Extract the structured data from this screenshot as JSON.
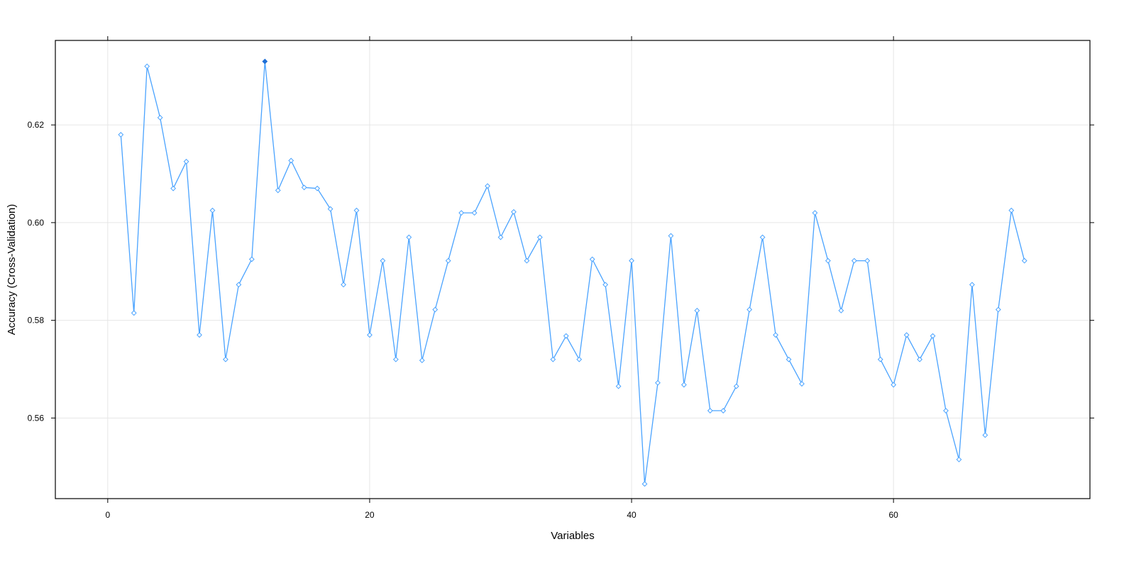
{
  "chart_data": {
    "type": "line",
    "title": "",
    "xlabel": "Variables",
    "ylabel": "Accuracy (Cross-Validation)",
    "xlim": [
      -4,
      75
    ],
    "ylim": [
      0.5435,
      0.6373
    ],
    "x_ticks": [
      0,
      20,
      40,
      60
    ],
    "x_tick_labels": [
      "0",
      "20",
      "40",
      "60"
    ],
    "y_ticks": [
      0.56,
      0.58,
      0.6,
      0.62
    ],
    "y_tick_labels": [
      "0.56",
      "0.58",
      "0.60",
      "0.62"
    ],
    "grid": true,
    "line_color": "#4aa3ff",
    "highlight_color": "#1f6fd6",
    "highlight_x": 12,
    "series": [
      {
        "x": [
          1,
          2,
          3,
          4,
          5,
          6,
          7,
          8,
          9,
          10,
          11,
          12,
          13,
          14,
          15,
          16,
          17,
          18,
          19,
          20,
          21,
          22,
          23,
          24,
          25,
          26,
          27,
          28,
          29,
          30,
          31,
          32,
          33,
          34,
          35,
          36,
          37,
          38,
          39,
          40,
          41,
          42,
          43,
          44,
          45,
          46,
          47,
          48,
          49,
          50,
          51,
          52,
          53,
          54,
          55,
          56,
          57,
          58,
          59,
          60,
          61,
          62,
          63,
          64,
          65,
          66,
          67,
          68,
          69,
          70
        ],
        "values": [
          0.618,
          0.5815,
          0.632,
          0.6215,
          0.607,
          0.6125,
          0.577,
          0.6025,
          0.572,
          0.5873,
          0.5925,
          0.633,
          0.6066,
          0.6127,
          0.6072,
          0.607,
          0.6028,
          0.5873,
          0.6025,
          0.577,
          0.5922,
          0.572,
          0.597,
          0.5718,
          0.5822,
          0.5922,
          0.602,
          0.602,
          0.6075,
          0.597,
          0.6022,
          0.5922,
          0.597,
          0.572,
          0.5768,
          0.572,
          0.5925,
          0.5873,
          0.5665,
          0.5922,
          0.5465,
          0.5672,
          0.5973,
          0.5668,
          0.582,
          0.5615,
          0.5615,
          0.5665,
          0.5822,
          0.597,
          0.577,
          0.572,
          0.567,
          0.602,
          0.5922,
          0.582,
          0.5922,
          0.5922,
          0.572,
          0.5668,
          0.577,
          0.572,
          0.5768,
          0.5615,
          0.5515,
          0.5873,
          0.5565,
          0.5822,
          0.6025,
          0.5922
        ]
      }
    ]
  }
}
